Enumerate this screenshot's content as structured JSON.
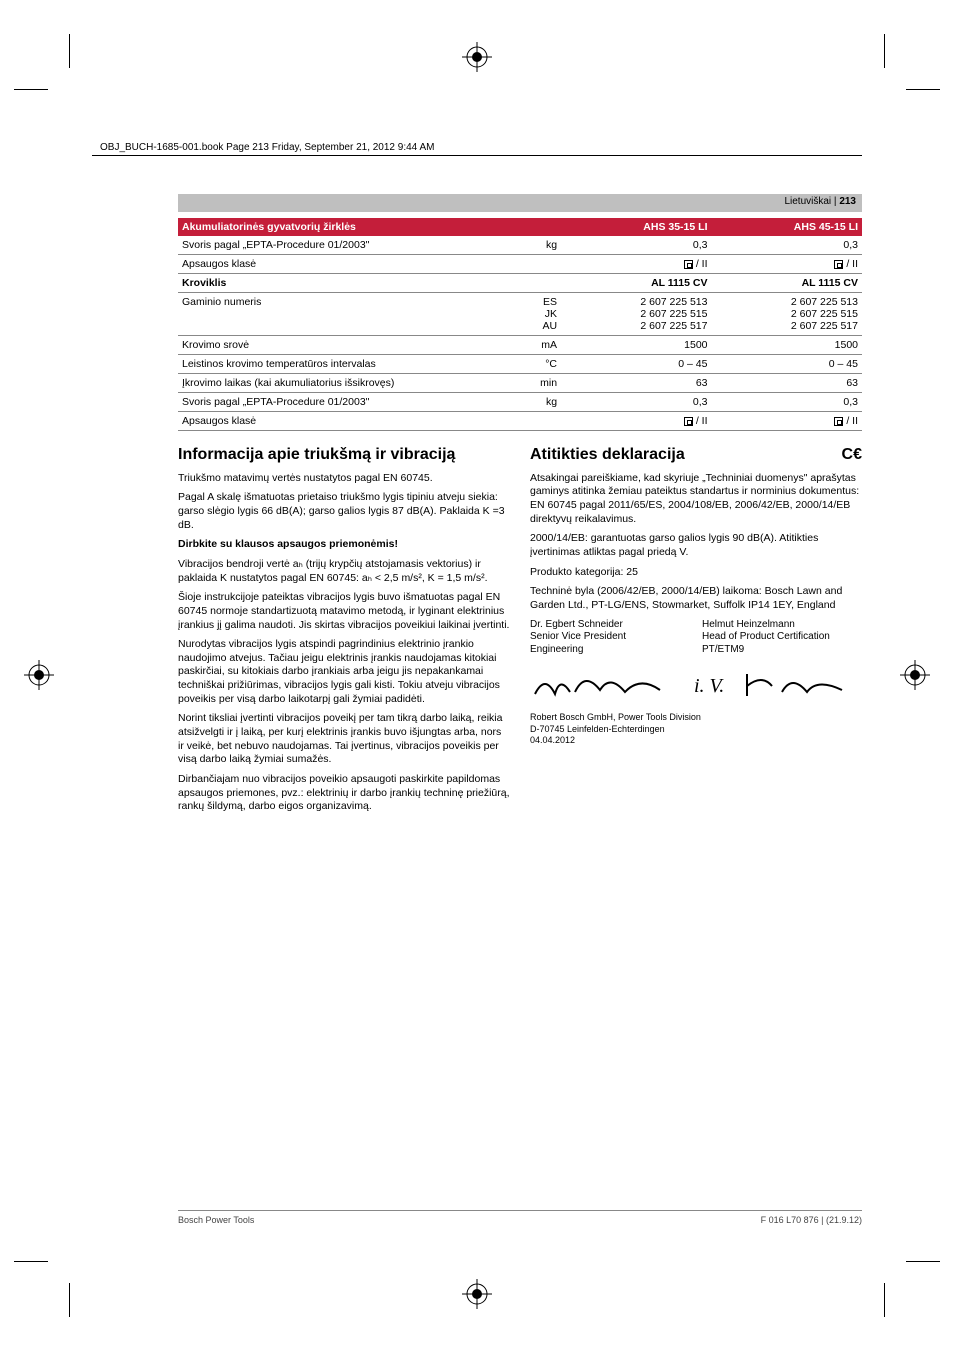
{
  "header_line": "OBJ_BUCH-1685-001.book  Page 213  Friday, September 21, 2012  9:44 AM",
  "page_lang": "Lietuviškai",
  "page_num": "213",
  "table": {
    "hdr1": {
      "label": "Akumuliatorinės gyvatvorių žirklės",
      "v1": "AHS 35-15 LI",
      "v2": "AHS 45-15 LI"
    },
    "rows1": [
      {
        "label": "Svoris pagal „EPTA-Procedure 01/2003\"",
        "unit": "kg",
        "v1": "0,3",
        "v2": "0,3"
      },
      {
        "label": "Apsaugos klasė",
        "unit": "",
        "v1": "□ / II",
        "v2": "□ / II",
        "sym": true
      }
    ],
    "hdr2": {
      "label": "Kroviklis",
      "v1": "AL 1115 CV",
      "v2": "AL 1115 CV"
    },
    "rows2": [
      {
        "label": "Gaminio numeris",
        "unit": "ES\nJK\nAU",
        "v1": "2 607 225 513\n2 607 225 515\n2 607 225 517",
        "v2": "2 607 225 513\n2 607 225 515\n2 607 225 517"
      },
      {
        "label": "Krovimo srovė",
        "unit": "mA",
        "v1": "1500",
        "v2": "1500"
      },
      {
        "label": "Leistinos krovimo temperatūros intervalas",
        "unit": "°C",
        "v1": "0 – 45",
        "v2": "0 – 45"
      },
      {
        "label": "Įkrovimo laikas (kai akumuliatorius išsikrovęs)",
        "unit": "min",
        "v1": "63",
        "v2": "63"
      },
      {
        "label": "Svoris pagal „EPTA-Procedure 01/2003\"",
        "unit": "kg",
        "v1": "0,3",
        "v2": "0,3"
      },
      {
        "label": "Apsaugos klasė",
        "unit": "",
        "v1": "□ / II",
        "v2": "□ / II",
        "sym": true
      }
    ]
  },
  "left": {
    "title": "Informacija apie triukšmą ir vibraciją",
    "p1": "Triukšmo matavimų vertės nustatytos pagal EN 60745.",
    "p2": "Pagal A skalę išmatuotas prietaiso triukšmo lygis tipiniu atveju siekia: garso slėgio lygis 66 dB(A); garso galios lygis 87 dB(A). Paklaida K =3 dB.",
    "p3": "Dirbkite su klausos apsaugos priemonėmis!",
    "p4": "Vibracijos bendroji vertė aₕ (trijų krypčių atstojamasis vektorius) ir paklaida K nustatytos pagal EN 60745: aₕ < 2,5 m/s², K = 1,5 m/s².",
    "p5": "Šioje instrukcijoje pateiktas vibracijos lygis buvo išmatuotas pagal EN 60745 normoje standartizuotą matavimo metodą, ir lyginant elektrinius įrankius jį galima naudoti. Jis skirtas vibracijos poveikiui laikinai įvertinti.",
    "p6": "Nurodytas vibracijos lygis atspindi pagrindinius elektrinio įrankio naudojimo atvejus. Tačiau jeigu elektrinis įrankis naudojamas kitokiai paskirčiai, su kitokiais darbo įrankiais arba jeigu jis nepakankamai techniškai prižiūrimas, vibracijos lygis gali kisti. Tokiu atveju vibracijos poveikis per visą darbo laikotarpį gali žymiai padidėti.",
    "p7": "Norint tiksliai įvertinti vibracijos poveikį per tam tikrą darbo laiką, reikia atsižvelgti ir į laiką, per kurį elektrinis įrankis buvo išjungtas arba, nors ir veikė, bet nebuvo naudojamas. Tai įvertinus, vibracijos poveikis per visą darbo laiką žymiai sumažės.",
    "p8": "Dirbančiajam nuo vibracijos poveikio apsaugoti paskirkite papildomas apsaugos priemones, pvz.: elektrinių ir darbo įrankių techninę priežiūrą, rankų šildymą, darbo eigos organizavimą."
  },
  "right": {
    "title": "Atitikties deklaracija",
    "ce": "C€",
    "p1": "Atsakingai pareiškiame, kad skyriuje „Techniniai duomenys\" aprašytas gaminys atitinka žemiau pateiktus standartus ir norminius dokumentus: EN 60745 pagal 2011/65/ES, 2004/108/EB, 2006/42/EB, 2000/14/EB direktyvų reikalavimus.",
    "p2": "2000/14/EB: garantuotas garso galios lygis 90 dB(A). Atitikties įvertinimas atliktas pagal priedą V.",
    "p3": "Produkto kategorija: 25",
    "p4": "Techninė byla (2006/42/EB, 2000/14/EB) laikoma: Bosch Lawn and Garden Ltd., PT-LG/ENS, Stowmarket, Suffolk IP14 1EY, England",
    "sig1_name": "Dr. Egbert Schneider",
    "sig1_title": "Senior Vice President",
    "sig1_dept": "Engineering",
    "sig2_name": "Helmut Heinzelmann",
    "sig2_title": "Head of Product Certification",
    "sig2_dept": "PT/ETM9",
    "addr": "Robert Bosch GmbH, Power Tools Division\nD-70745 Leinfelden-Echterdingen\n04.04.2012"
  },
  "footer_left": "Bosch Power Tools",
  "footer_right": "F 016 L70 876 | (21.9.12)"
}
